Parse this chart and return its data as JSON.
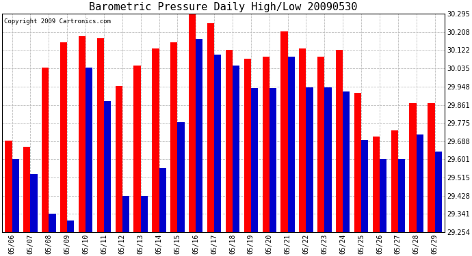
{
  "title": "Barometric Pressure Daily High/Low 20090530",
  "copyright": "Copyright 2009 Cartronics.com",
  "dates": [
    "05/06",
    "05/07",
    "05/08",
    "05/09",
    "05/10",
    "05/11",
    "05/12",
    "05/13",
    "05/14",
    "05/15",
    "05/16",
    "05/17",
    "05/18",
    "05/19",
    "05/20",
    "05/21",
    "05/22",
    "05/23",
    "05/24",
    "05/25",
    "05/26",
    "05/27",
    "05/28",
    "05/29"
  ],
  "highs": [
    29.69,
    29.66,
    30.04,
    30.16,
    30.19,
    30.18,
    29.95,
    30.05,
    30.13,
    30.16,
    30.295,
    30.25,
    30.122,
    30.08,
    30.09,
    30.21,
    30.13,
    30.09,
    30.122,
    29.92,
    29.71,
    29.74,
    29.87,
    29.87
  ],
  "lows": [
    29.601,
    29.53,
    29.341,
    29.31,
    30.04,
    29.88,
    29.428,
    29.428,
    29.56,
    29.78,
    30.175,
    30.1,
    30.05,
    29.94,
    29.94,
    30.09,
    29.945,
    29.945,
    29.925,
    29.695,
    29.601,
    29.601,
    29.72,
    29.64
  ],
  "ylim_min": 29.254,
  "ylim_max": 30.295,
  "yticks": [
    29.254,
    29.341,
    29.428,
    29.515,
    29.601,
    29.688,
    29.775,
    29.861,
    29.948,
    30.035,
    30.122,
    30.208,
    30.295
  ],
  "high_color": "#ff0000",
  "low_color": "#0000cc",
  "bg_color": "#ffffff",
  "grid_color": "#bbbbbb",
  "bar_width": 0.38,
  "title_fontsize": 11,
  "tick_fontsize": 7,
  "copyright_fontsize": 6.5
}
